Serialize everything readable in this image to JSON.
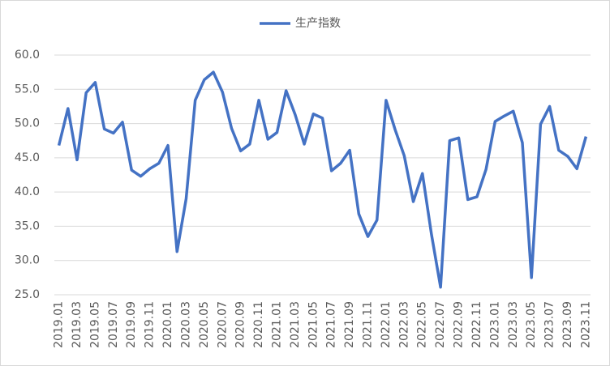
{
  "chart_data": {
    "type": "line",
    "categories": [
      "2019.01",
      null,
      "2019.03",
      null,
      "2019.05",
      null,
      "2019.07",
      null,
      "2019.09",
      null,
      "2019.11",
      null,
      "2020.01",
      null,
      "2020.03",
      null,
      "2020.05",
      null,
      "2020.07",
      null,
      "2020.09",
      null,
      "2020.11",
      null,
      "2021.01",
      null,
      "2021.03",
      null,
      "2021.05",
      null,
      "2021.07",
      null,
      "2021.09",
      null,
      "2021.11",
      null,
      "2022.01",
      null,
      "2022.03",
      null,
      "2022.05",
      null,
      "2022.07",
      null,
      "2022.09",
      null,
      "2022.11",
      null,
      "2023.01",
      null,
      "2023.03",
      null,
      "2023.05",
      null,
      "2023.07",
      null,
      "2023.09",
      null,
      "2023.11"
    ],
    "series": [
      {
        "name": "生产指数",
        "color": "#4472c4",
        "values": [
          46.8,
          52.2,
          44.7,
          54.5,
          56.0,
          49.2,
          48.6,
          50.2,
          43.2,
          42.3,
          43.4,
          44.2,
          46.8,
          31.3,
          39.0,
          53.4,
          56.4,
          57.5,
          54.6,
          49.3,
          46.0,
          47.0,
          53.4,
          47.7,
          48.7,
          54.8,
          51.3,
          47.0,
          51.4,
          50.8,
          43.1,
          44.2,
          46.1,
          36.8,
          33.5,
          35.9,
          53.4,
          49.1,
          45.3,
          38.6,
          42.7,
          33.8,
          26.1,
          47.5,
          47.9,
          38.9,
          39.3,
          43.3,
          50.3,
          51.1,
          51.8,
          47.2,
          27.5,
          49.9,
          52.5,
          46.1,
          45.2,
          43.4,
          48.1
        ]
      }
    ],
    "ylim": [
      25,
      60
    ],
    "yticks": [
      {
        "value": 25,
        "label": "25.0"
      },
      {
        "value": 30,
        "label": "30.0"
      },
      {
        "value": 35,
        "label": "35.0"
      },
      {
        "value": 40,
        "label": "40.0"
      },
      {
        "value": 45,
        "label": "45.0"
      },
      {
        "value": 50,
        "label": "50.0"
      },
      {
        "value": 55,
        "label": "55.0"
      },
      {
        "value": 60,
        "label": "60.0"
      }
    ],
    "grid": true,
    "legend": "top"
  }
}
